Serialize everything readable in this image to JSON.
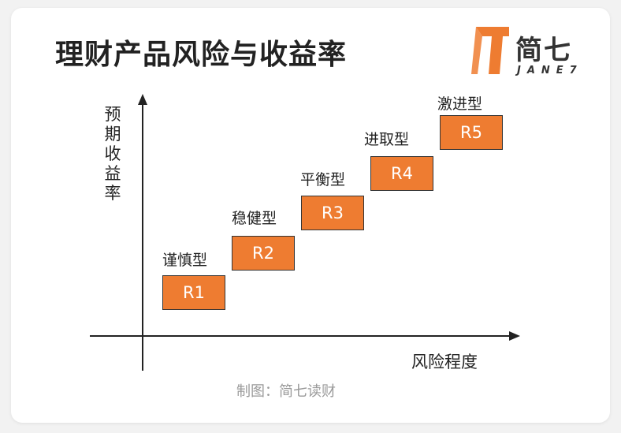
{
  "title": "理财产品风险与收益率",
  "logo": {
    "text": "简七",
    "subtext": "JANE7",
    "accent_color": "#ee7c31"
  },
  "axes": {
    "y_label": "预期收益率",
    "x_label": "风险程度"
  },
  "box_color": "#ee7c31",
  "levels": [
    {
      "code": "R1",
      "name": "谨慎型"
    },
    {
      "code": "R2",
      "name": "稳健型"
    },
    {
      "code": "R3",
      "name": "平衡型"
    },
    {
      "code": "R4",
      "name": "进取型"
    },
    {
      "code": "R5",
      "name": "激进型"
    }
  ],
  "credit": "制图：简七读财"
}
